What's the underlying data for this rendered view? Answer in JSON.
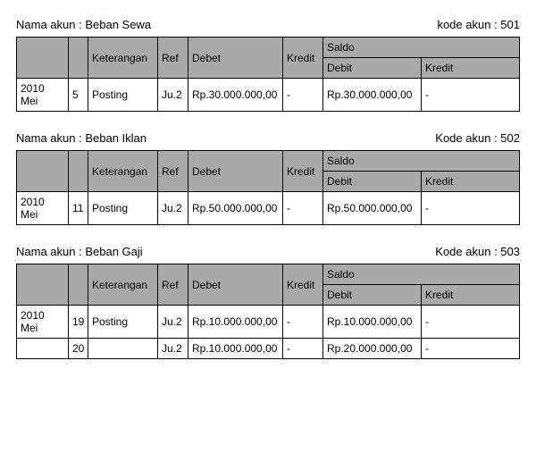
{
  "labels": {
    "nama_akun": "Nama akun",
    "kode_akun": "Kode akun",
    "kode_akun_first": "kode akun",
    "keterangan": "Keterangan",
    "ref": "Ref",
    "debet": "Debet",
    "kredit": "Kredit",
    "saldo": "Saldo",
    "saldo_debit": "Debit",
    "saldo_kredit": "Kredit"
  },
  "accounts": [
    {
      "name": "Beban Sewa",
      "code": "501",
      "rows": [
        {
          "date": "2010 Mei",
          "day": "5",
          "desc": "Posting",
          "ref": "Ju.2",
          "debet": "Rp.30.000.000,00",
          "kredit": "-",
          "sdeb": "Rp.30.000.000,00",
          "skre": "-"
        }
      ]
    },
    {
      "name": "Beban Iklan",
      "code": "502",
      "rows": [
        {
          "date": "2010 Mei",
          "day": "11",
          "desc": "Posting",
          "ref": "Ju.2",
          "debet": "Rp.50.000.000,00",
          "kredit": "-",
          "sdeb": "Rp.50.000.000,00",
          "skre": "-"
        }
      ]
    },
    {
      "name": "Beban Gaji",
      "code": "503",
      "rows": [
        {
          "date": "2010 Mei",
          "day": "19",
          "desc": "Posting",
          "ref": "Ju.2",
          "debet": "Rp.10.000.000,00",
          "kredit": "-",
          "sdeb": "Rp.10.000.000,00",
          "skre": "-"
        },
        {
          "date": "",
          "day": "20",
          "desc": "",
          "ref": "Ju.2",
          "debet": "Rp.10.000.000,00",
          "kredit": "-",
          "sdeb": "Rp.20.000.000,00",
          "skre": "-"
        }
      ]
    }
  ]
}
